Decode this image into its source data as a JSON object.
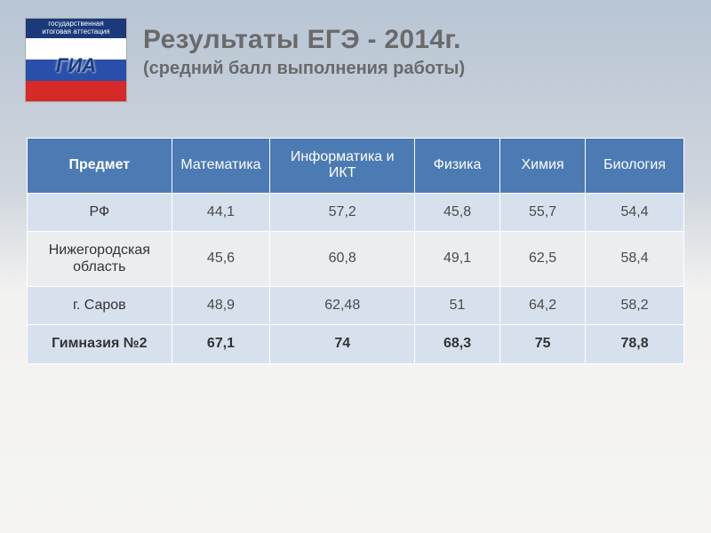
{
  "logo": {
    "banner_line1": "государственная",
    "banner_line2": "итоговая аттестация",
    "center": "ГИА",
    "sub": ""
  },
  "title": "Результаты ЕГЭ  - 2014г.",
  "subtitle": "(средний балл выполнения работы)",
  "table": {
    "type": "table",
    "header_bg": "#4c7bb4",
    "header_fg": "#ffffff",
    "band_a_bg": "#d7e1ee",
    "band_b_bg": "#ecedef",
    "border_color": "#ffffff",
    "font_size": 16,
    "columns": [
      {
        "label": "Предмет",
        "width_pct": 22
      },
      {
        "label": "Математика",
        "width_pct": 15
      },
      {
        "label": "Информатика и ИКТ",
        "width_pct": 22
      },
      {
        "label": "Физика",
        "width_pct": 13
      },
      {
        "label": "Химия",
        "width_pct": 13
      },
      {
        "label": "Биология",
        "width_pct": 15
      }
    ],
    "rows": [
      {
        "band": "a",
        "label": "РФ",
        "cells": [
          "44,1",
          "57,2",
          "45,8",
          "55,7",
          "54,4"
        ]
      },
      {
        "band": "b",
        "label": "Нижегородская область",
        "cells": [
          "45,6",
          "60,8",
          "49,1",
          "62,5",
          "58,4"
        ]
      },
      {
        "band": "a",
        "label": "г. Саров",
        "cells": [
          "48,9",
          "62,48",
          "51",
          "64,2",
          "58,2"
        ]
      },
      {
        "band": "emph",
        "label": "Гимназия №2",
        "cells": [
          "67,1",
          "74",
          "68,3",
          "75",
          "78,8"
        ]
      }
    ]
  }
}
